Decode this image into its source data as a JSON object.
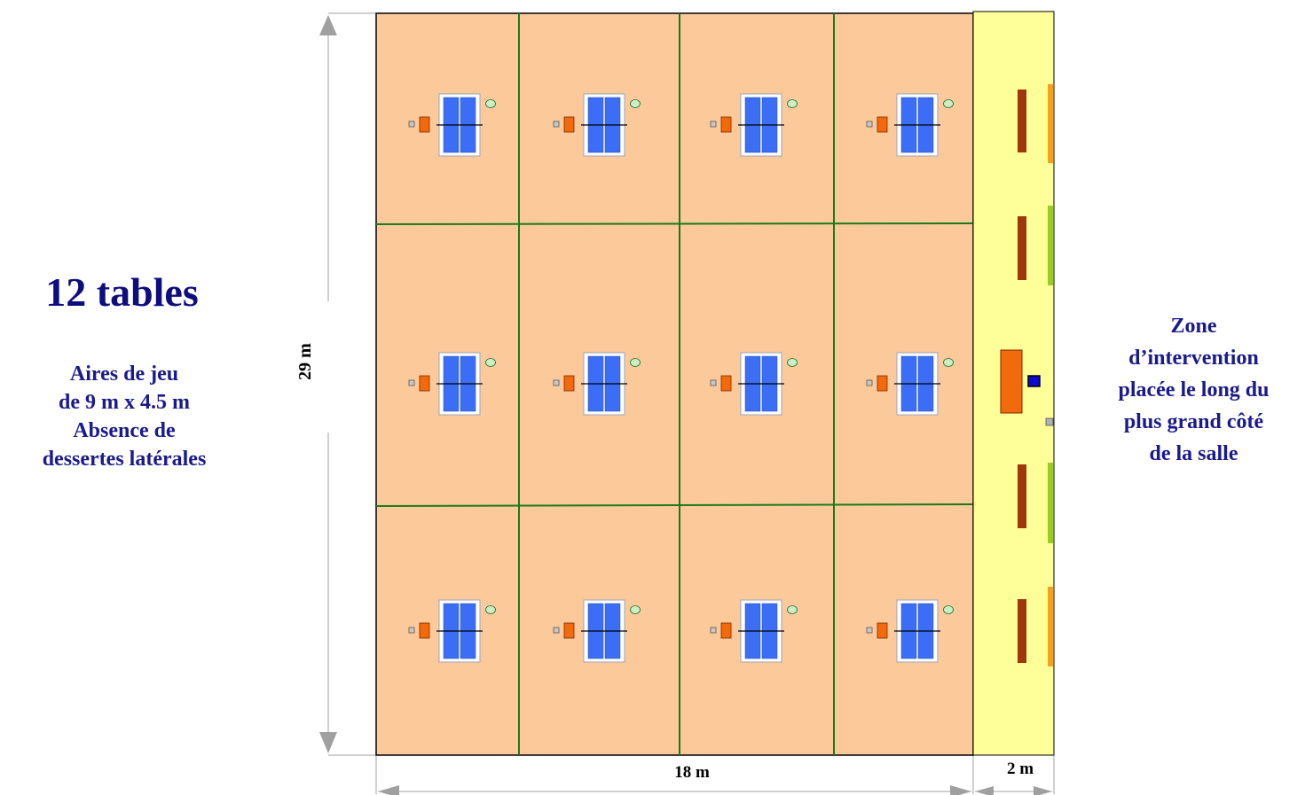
{
  "title": "12 tables",
  "left_description": {
    "lines": [
      "Aires de jeu",
      "de 9 m x 4.5 m",
      "Absence de",
      "dessertes latérales"
    ]
  },
  "right_description": {
    "lines": [
      "Zone",
      "d’intervention",
      "placée le long du",
      "plus grand  côté",
      "de la salle"
    ]
  },
  "dimensions": {
    "height": "29 m",
    "width": "18 m",
    "zone_width": "2 m"
  },
  "layout_counts": {
    "rows": 3,
    "columns": 4,
    "tables": 12
  },
  "colors": {
    "playing_area": "#fcc99b",
    "area_divider": "#1a7a1a",
    "table_top": "#3b6ef5",
    "intervention_zone": "#ffff99",
    "referee_table": "#f26a0c",
    "bench": "#a0360c",
    "side_strip_orange": "#f5a21a",
    "side_strip_green": "#9acd22",
    "dimension_line": "#a0a0a0"
  }
}
